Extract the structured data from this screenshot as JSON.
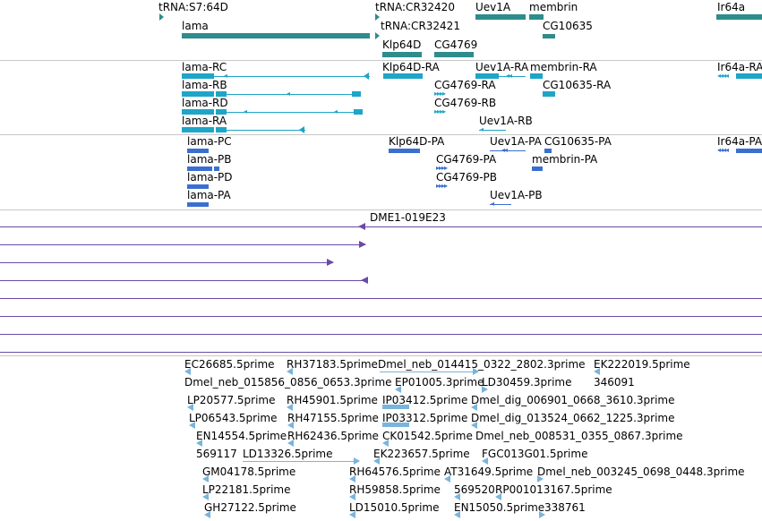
{
  "colors": {
    "gene": "#2f8c8c",
    "transcript": "#1ea5c8",
    "protein": "#3a6fd0",
    "clone": "#6a4aa8",
    "est": "#7ab4dc",
    "separator": "#c8c8c8"
  },
  "genes": {
    "trna_s7_64d": "tRNA:S7:64D",
    "trna_cr32420": "tRNA:CR32420",
    "uev1a": "Uev1A",
    "membrin": "membrin",
    "ir64a": "Ir64a",
    "lama": "lama",
    "trna_cr32421": "tRNA:CR32421",
    "cg10635": "CG10635",
    "klp64d": "Klp64D",
    "cg4769": "CG4769"
  },
  "transcripts": {
    "lama_rc": "lama-RC",
    "klp64d_ra": "Klp64D-RA",
    "uev1a_ra": "Uev1A-RA",
    "membrin_ra": "membrin-RA",
    "ir64a_ra": "Ir64a-RA",
    "lama_rb": "lama-RB",
    "cg4769_ra": "CG4769-RA",
    "cg10635_ra": "CG10635-RA",
    "lama_rd": "lama-RD",
    "cg4769_rb": "CG4769-RB",
    "lama_ra": "lama-RA",
    "uev1a_rb": "Uev1A-RB"
  },
  "proteins": {
    "lama_pc": "lama-PC",
    "klp64d_pa": "Klp64D-PA",
    "uev1a_pa": "Uev1A-PA",
    "cg10635_pa": "CG10635-PA",
    "ir64a_pa": "Ir64a-PA",
    "lama_pb": "lama-PB",
    "cg4769_pa": "CG4769-PA",
    "membrin_pa": "membrin-PA",
    "lama_pd": "lama-PD",
    "cg4769_pb": "CG4769-PB",
    "lama_pa": "lama-PA",
    "uev1a_pb": "Uev1A-PB"
  },
  "clones": {
    "dme1_019e23": "DME1-019E23"
  },
  "ests": {
    "ec26685": "EC26685.5prime",
    "rh37183": "RH37183.5prime",
    "dmel_neb_014415": "Dmel_neb_014415_0322_2802.3prime",
    "ek222019": "EK222019.5prime",
    "dmel_neb_015856": "Dmel_neb_015856_0856_0653.3prime",
    "ep01005": "EP01005.3prime",
    "ld30459": "LD30459.3prime",
    "n346091": "346091",
    "lp20577": "LP20577.5prime",
    "rh45901": "RH45901.5prime",
    "ip03412": "IP03412.5prime",
    "dmel_dig_006901": "Dmel_dig_006901_0668_3610.3prime",
    "lp06543": "LP06543.5prime",
    "rh47155": "RH47155.5prime",
    "ip03312": "IP03312.5prime",
    "dmel_dig_013524": "Dmel_dig_013524_0662_1225.3prime",
    "en14554": "EN14554.5prime",
    "rh62436": "RH62436.5prime",
    "ck01542": "CK01542.5prime",
    "dmel_neb_008531": "Dmel_neb_008531_0355_0867.3prime",
    "n569117": "569117",
    "ld13326": "LD13326.5prime",
    "ek223657": "EK223657.5prime",
    "fgc013g01": "FGC013G01.5prime",
    "gm04178": "GM04178.5prime",
    "rh64576": "RH64576.5prime",
    "at31649": "AT31649.5prime",
    "dmel_neb_003245": "Dmel_neb_003245_0698_0448.3prime",
    "lp22181": "LP22181.5prime",
    "rh59858": "RH59858.5prime",
    "n569520": "569520",
    "rp001013167": "RP001013167.5prime",
    "gh27122": "GH27122.5prime",
    "ld15010": "LD15010.5prime",
    "en15050": "EN15050.5prime",
    "n338761": "338761"
  }
}
